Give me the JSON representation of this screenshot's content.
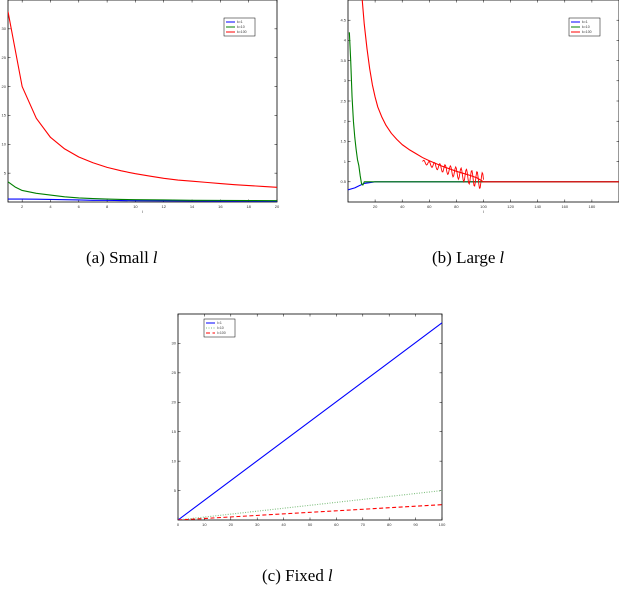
{
  "captions": [
    {
      "label": "(a)  Small",
      "var": "l"
    },
    {
      "label": "(b)  Large",
      "var": "l"
    },
    {
      "label": "(c)  Fixed",
      "var": "l"
    }
  ],
  "chart_data": [
    {
      "type": "line",
      "xlabel": "l",
      "ylabel": "",
      "xlim": [
        1,
        20
      ],
      "ylim": [
        0,
        35
      ],
      "xticks": [
        2,
        4,
        6,
        8,
        10,
        12,
        14,
        16,
        18,
        20
      ],
      "yticks": [
        5,
        10,
        15,
        20,
        25,
        30
      ],
      "xtick_labels": [
        "2",
        "4",
        "6",
        "8",
        "10",
        "12",
        "14",
        "16",
        "18",
        "20"
      ],
      "ytick_labels": [
        "5",
        "10",
        "15",
        "20",
        "25",
        "30"
      ],
      "legend": "top-right",
      "grid": false,
      "series": [
        {
          "name": "k=1",
          "color": "#0000ff",
          "x": [
            1,
            2,
            3,
            4,
            5,
            6,
            7,
            8,
            9,
            10,
            12,
            14,
            16,
            18,
            20
          ],
          "y": [
            0.5,
            0.5,
            0.48,
            0.45,
            0.4,
            0.35,
            0.3,
            0.28,
            0.25,
            0.22,
            0.2,
            0.18,
            0.16,
            0.15,
            0.14
          ]
        },
        {
          "name": "k=10",
          "color": "#007f00",
          "x": [
            1,
            1.5,
            2,
            3,
            4,
            5,
            6,
            7,
            8,
            9,
            10,
            12,
            14,
            16,
            18,
            20
          ],
          "y": [
            3.5,
            2.6,
            2.0,
            1.5,
            1.2,
            0.9,
            0.7,
            0.6,
            0.5,
            0.45,
            0.4,
            0.35,
            0.3,
            0.28,
            0.25,
            0.22
          ]
        },
        {
          "name": "k=100",
          "color": "#ff0000",
          "x": [
            1,
            2,
            3,
            4,
            5,
            6,
            7,
            8,
            9,
            10,
            11,
            12,
            13,
            14,
            15,
            16,
            17,
            18,
            19,
            20
          ],
          "y": [
            33,
            20,
            14.5,
            11.2,
            9.2,
            7.8,
            6.8,
            6.0,
            5.4,
            4.9,
            4.5,
            4.1,
            3.8,
            3.6,
            3.4,
            3.2,
            3.0,
            2.85,
            2.7,
            2.55
          ]
        }
      ]
    },
    {
      "type": "line",
      "xlabel": "l",
      "ylabel": "",
      "xlim": [
        0,
        200
      ],
      "ylim": [
        0,
        5
      ],
      "xticks": [
        20,
        40,
        60,
        80,
        100,
        120,
        140,
        160,
        180
      ],
      "yticks": [
        0.5,
        1,
        1.5,
        2,
        2.5,
        3,
        3.5,
        4,
        4.5
      ],
      "xtick_labels": [
        "20",
        "40",
        "60",
        "80",
        "100",
        "120",
        "140",
        "160",
        "180"
      ],
      "ytick_labels": [
        "0.5",
        "1",
        "1.5",
        "2",
        "2.5",
        "3",
        "3.5",
        "4",
        "4.5"
      ],
      "legend": "top-right",
      "grid": false,
      "series": [
        {
          "name": "k=1",
          "color": "#0000ff",
          "x": [
            0,
            5,
            8,
            12,
            20,
            200
          ],
          "y": [
            0.3,
            0.35,
            0.4,
            0.46,
            0.5,
            0.5
          ]
        },
        {
          "name": "k=10",
          "color": "#007f00",
          "x": [
            1,
            2,
            3,
            4,
            5,
            6,
            7,
            8,
            9,
            10,
            11,
            12,
            14,
            200
          ],
          "y": [
            4.2,
            3.5,
            2.6,
            2.0,
            1.6,
            1.3,
            1.05,
            0.9,
            0.65,
            0.45,
            0.42,
            0.5,
            0.5,
            0.5
          ]
        },
        {
          "name": "k=100",
          "color": "#ff0000",
          "x": [
            10,
            12,
            14,
            16,
            18,
            20,
            22,
            25,
            28,
            32,
            36,
            40,
            45,
            50,
            55,
            60,
            65,
            70,
            75,
            80,
            85,
            90,
            95,
            100,
            105,
            200
          ],
          "y": [
            5.2,
            4.4,
            3.8,
            3.3,
            2.9,
            2.6,
            2.35,
            2.1,
            1.9,
            1.7,
            1.55,
            1.42,
            1.3,
            1.2,
            1.1,
            1.02,
            0.95,
            0.88,
            0.82,
            0.76,
            0.71,
            0.66,
            0.6,
            0.5,
            0.5,
            0.5
          ]
        }
      ]
    },
    {
      "type": "line",
      "xlabel": "",
      "ylabel": "",
      "xlim": [
        0,
        100
      ],
      "ylim": [
        0,
        35
      ],
      "xticks": [
        0,
        10,
        20,
        30,
        40,
        50,
        60,
        70,
        80,
        90,
        100
      ],
      "yticks": [
        5,
        10,
        15,
        20,
        25,
        30
      ],
      "xtick_labels": [
        "0",
        "10",
        "20",
        "30",
        "40",
        "50",
        "60",
        "70",
        "80",
        "90",
        "100"
      ],
      "ytick_labels": [
        "5",
        "10",
        "15",
        "20",
        "25",
        "30"
      ],
      "legend": "top-left",
      "grid": false,
      "series": [
        {
          "name": "l=1",
          "color": "#0000ff",
          "style": "solid",
          "x": [
            0,
            100
          ],
          "y": [
            0,
            33.5
          ]
        },
        {
          "name": "l=10",
          "color": "#7fbf7f",
          "style": "dotted",
          "x": [
            0,
            100
          ],
          "y": [
            0,
            5.0
          ]
        },
        {
          "name": "l=100",
          "color": "#ff0000",
          "style": "dashed",
          "x": [
            0,
            100
          ],
          "y": [
            0,
            2.6
          ]
        }
      ]
    }
  ]
}
